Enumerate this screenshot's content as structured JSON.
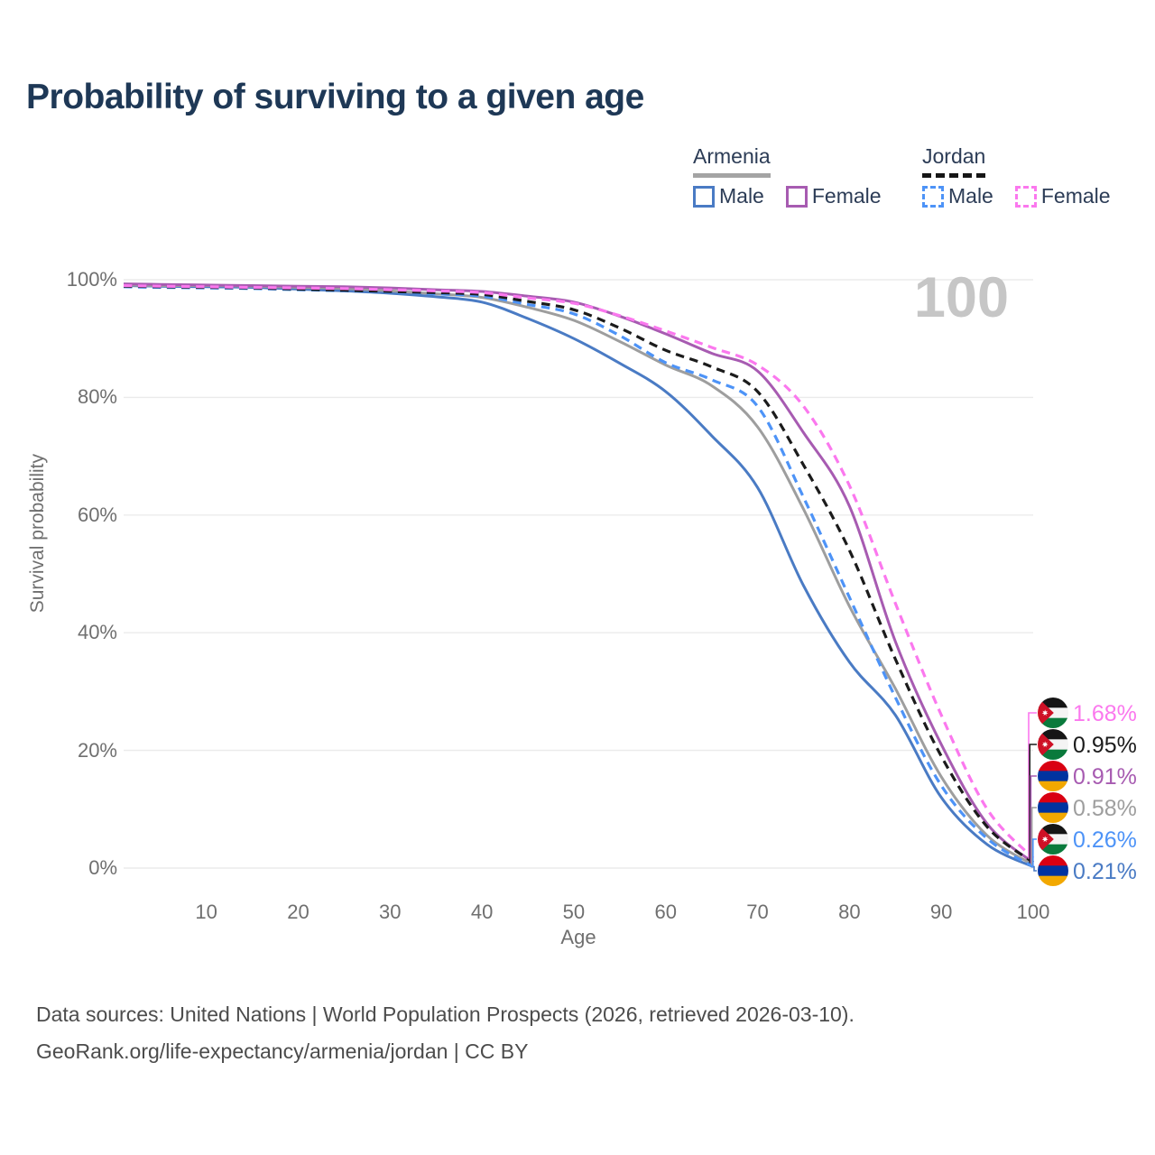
{
  "title": "Probability of surviving to a given age",
  "watermark": "100",
  "legend": {
    "groups": [
      {
        "label": "Armenia",
        "line_style": "solid",
        "underline_color": "#a4a4a4",
        "items": [
          {
            "label": "Male",
            "color": "#4a7bc4",
            "dashed": false
          },
          {
            "label": "Female",
            "color": "#a75bb1",
            "dashed": false
          }
        ]
      },
      {
        "label": "Jordan",
        "line_style": "dashed",
        "underline_color": "#161616",
        "items": [
          {
            "label": "Male",
            "color": "#4d93f7",
            "dashed": true
          },
          {
            "label": "Female",
            "color": "#fb78ee",
            "dashed": true
          }
        ]
      }
    ]
  },
  "chart_data": {
    "type": "line",
    "title": "Probability of surviving to a given age",
    "xlabel": "Age",
    "ylabel": "Survival probability",
    "xlim": [
      1,
      100
    ],
    "ylim": [
      0,
      100
    ],
    "x_ticks": [
      10,
      20,
      30,
      40,
      50,
      60,
      70,
      80,
      90,
      100
    ],
    "y_ticks": [
      0,
      20,
      40,
      60,
      80,
      100
    ],
    "y_tick_suffix": "%",
    "grid": "horizontal",
    "legend_position": "top-right",
    "ages": [
      1,
      5,
      10,
      15,
      20,
      25,
      30,
      35,
      40,
      45,
      50,
      55,
      60,
      65,
      70,
      75,
      80,
      85,
      90,
      95,
      100
    ],
    "series": [
      {
        "id": "armenia-male",
        "country": "Armenia",
        "sex": "Male",
        "style": "solid",
        "color": "#4a7bc4",
        "end_label": "0.21%",
        "end_value": 0.21,
        "values": [
          99.0,
          98.9,
          98.8,
          98.7,
          98.4,
          98.1,
          97.7,
          97.1,
          96.2,
          93.4,
          90.0,
          85.8,
          81.0,
          73.5,
          64.7,
          48.0,
          35.0,
          26.0,
          12.0,
          4.0,
          0.21
        ]
      },
      {
        "id": "armenia-total",
        "country": "Armenia",
        "sex": "Both sexes",
        "style": "solid",
        "color": "#9e9e9e",
        "end_label": "0.58%",
        "end_value": 0.58,
        "values": [
          99.1,
          99.0,
          99.0,
          98.9,
          98.7,
          98.5,
          98.1,
          97.6,
          97.0,
          95.3,
          93.1,
          89.5,
          85.5,
          82.0,
          75.0,
          61.0,
          44.5,
          30.5,
          15.5,
          5.5,
          0.58
        ]
      },
      {
        "id": "armenia-female",
        "country": "Armenia",
        "sex": "Female",
        "style": "solid",
        "color": "#a75bb1",
        "end_label": "0.91%",
        "end_value": 0.91,
        "values": [
          99.3,
          99.2,
          99.1,
          99.0,
          98.9,
          98.8,
          98.6,
          98.3,
          98.0,
          97.2,
          96.2,
          93.8,
          90.8,
          87.5,
          84.5,
          74.0,
          61.5,
          38.5,
          21.0,
          7.5,
          0.91
        ]
      },
      {
        "id": "jordan-male",
        "country": "Jordan",
        "sex": "Male",
        "style": "dashed",
        "color": "#4d93f7",
        "end_label": "0.26%",
        "end_value": 0.26,
        "values": [
          98.8,
          98.7,
          98.6,
          98.5,
          98.3,
          98.1,
          97.9,
          97.6,
          97.2,
          95.8,
          94.2,
          90.5,
          85.9,
          83.0,
          78.5,
          63.0,
          46.0,
          29.0,
          14.0,
          5.0,
          0.26
        ]
      },
      {
        "id": "jordan-total",
        "country": "Jordan",
        "sex": "Both sexes",
        "style": "dashed",
        "color": "#1b1b1b",
        "end_label": "0.95%",
        "end_value": 0.95,
        "values": [
          98.9,
          98.8,
          98.7,
          98.6,
          98.4,
          98.2,
          98.0,
          97.8,
          97.5,
          96.3,
          94.9,
          91.8,
          88.0,
          85.2,
          81.0,
          68.5,
          54.0,
          35.5,
          19.0,
          7.0,
          0.95
        ]
      },
      {
        "id": "jordan-female",
        "country": "Jordan",
        "sex": "Female",
        "style": "dashed",
        "color": "#fb78ee",
        "end_label": "1.68%",
        "end_value": 1.68,
        "values": [
          99.0,
          98.9,
          98.8,
          98.7,
          98.6,
          98.5,
          98.3,
          98.1,
          97.8,
          96.9,
          96.0,
          93.9,
          91.3,
          88.5,
          85.5,
          78.5,
          65.0,
          45.0,
          26.0,
          10.0,
          1.68
        ]
      }
    ]
  },
  "flags": {
    "armenia": {
      "stripes": [
        "#d90012",
        "#0033a0",
        "#f2a800"
      ]
    },
    "jordan": {
      "stripes": [
        "#151515",
        "#f4f4f4",
        "#0a7a3c"
      ],
      "triangle": "#ce1126",
      "star": "#ffffff"
    }
  },
  "footer": {
    "line1": "Data sources: United Nations | World Population Prospects (2026, retrieved 2026-03-10).",
    "line2": "GeoRank.org/life-expectancy/armenia/jordan | CC BY"
  }
}
